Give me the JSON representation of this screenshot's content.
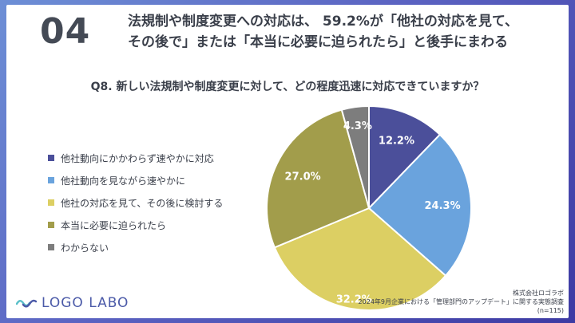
{
  "header": {
    "number": "04",
    "headline_line1": "法規制や制度変更への対応は、 59.2%が「他社の対応を見て、",
    "headline_line2": "その後で」または「本当に必要に迫られたら」と後手にまわる"
  },
  "chart_data": {
    "type": "pie",
    "title": "Q8. 新しい法規制や制度変更に対して、どの程度迅速に対応できていますか？",
    "categories": [
      "他社動向にかかわらず速やかに対応",
      "他社動向を見ながら速やかに",
      "他社の対応を見て、その後に検討する",
      "本当に必要に迫られたら",
      "わからない"
    ],
    "values": [
      12.2,
      24.3,
      32.2,
      27.0,
      4.3
    ],
    "labels": [
      "12.2%",
      "24.3%",
      "32.2%",
      "27.0%",
      "4.3%"
    ],
    "colors": [
      "#4b4f9a",
      "#6aa3dd",
      "#dccf63",
      "#a29d4b",
      "#7d7d7d"
    ],
    "legend_position": "left"
  },
  "footer": {
    "logo_text": "LOGO LABO",
    "source_line1": "株式会社ロゴラボ",
    "source_line2": "2024年9月企業における「管理部門のアップデート」に関する実態調査",
    "source_line3": "(n=115)"
  }
}
